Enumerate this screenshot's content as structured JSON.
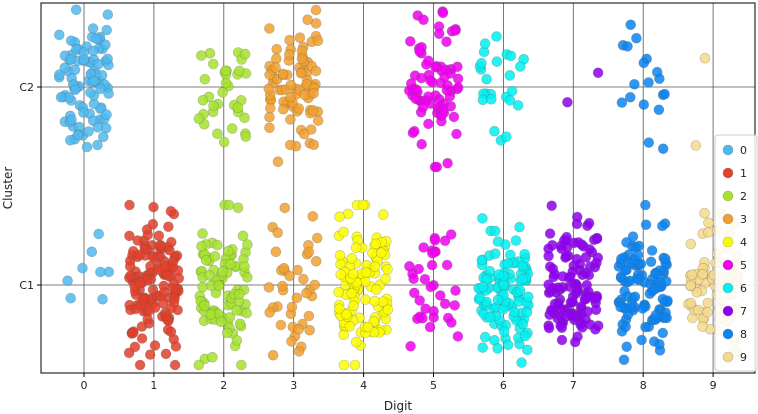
{
  "chart_data": {
    "type": "scatter",
    "title": "",
    "xlabel": "Digit",
    "ylabel": "Cluster",
    "x_categories": [
      "0",
      "1",
      "2",
      "3",
      "4",
      "5",
      "6",
      "7",
      "8",
      "9"
    ],
    "y_categories": [
      "C1",
      "C2"
    ],
    "grid": true,
    "legend_placement": "right",
    "jitter": "points jittered around each digit/cluster cell",
    "series": [
      {
        "name": "0",
        "color": "#4db8ee",
        "counts": {
          "C1": 8,
          "C2": 95
        }
      },
      {
        "name": "1",
        "color": "#e2402a",
        "counts": {
          "C1": 140,
          "C2": 0
        }
      },
      {
        "name": "2",
        "color": "#a6e22e",
        "counts": {
          "C1": 90,
          "C2": 35
        }
      },
      {
        "name": "3",
        "color": "#f0a030",
        "counts": {
          "C1": 40,
          "C2": 85
        }
      },
      {
        "name": "4",
        "color": "#fbfb00",
        "counts": {
          "C1": 110,
          "C2": 0
        }
      },
      {
        "name": "5",
        "color": "#f000f0",
        "counts": {
          "C1": 35,
          "C2": 75
        }
      },
      {
        "name": "6",
        "color": "#00f0f0",
        "counts": {
          "C1": 110,
          "C2": 25
        }
      },
      {
        "name": "7",
        "color": "#8e00f0",
        "counts": {
          "C1": 120,
          "C2": 2
        }
      },
      {
        "name": "8",
        "color": "#0a84f0",
        "counts": {
          "C1": 105,
          "C2": 18
        }
      },
      {
        "name": "9",
        "color": "#f5d88a",
        "counts": {
          "C1": 80,
          "C2": 2
        }
      }
    ]
  }
}
